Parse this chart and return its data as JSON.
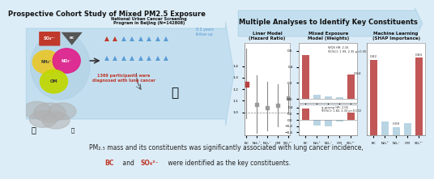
{
  "background_color": "#ddedf7",
  "bottom_bg": "#cce3f0",
  "title_left": "Prospective Cohort Study of Mixed PM2.5 Exposure",
  "title_right": "Multiple Analyses to Identify Key Constituents",
  "panel1_title": "Liner Model\n(Hazard Ratio)",
  "panel2_title": "Mixed Exposure\nModel (Weights)",
  "panel3_title": "Machine Learning\n(SHAP Importance)",
  "categories": [
    "BC",
    "NH₄⁺",
    "NO₃⁻",
    "OM",
    "SO₄²⁻"
  ],
  "panel1_values": [
    1.24,
    1.07,
    1.04,
    1.06,
    1.12
  ],
  "panel1_ci_low": [
    0.95,
    0.82,
    0.84,
    0.88,
    1.0
  ],
  "panel1_ci_high": [
    1.55,
    1.32,
    1.26,
    1.24,
    1.24
  ],
  "panel1_colors": [
    "#b94040",
    "#999999",
    "#999999",
    "#999999",
    "#999999"
  ],
  "panel2_wqs_values": [
    0.55,
    0.05,
    0.03,
    0.02,
    0.3
  ],
  "panel2_qgcomp_values": [
    0.38,
    -0.18,
    -0.2,
    -0.05,
    0.25
  ],
  "panel2_bar_colors_wqs": [
    "#b94040",
    "#b0cfe0",
    "#b0cfe0",
    "#b0cfe0",
    "#b94040"
  ],
  "panel2_bar_colors_qgcomp": [
    "#b94040",
    "#b0cfe0",
    "#b0cfe0",
    "#b0cfe0",
    "#b94040"
  ],
  "panel3_values": [
    0.82,
    0.15,
    0.09,
    0.13,
    0.84
  ],
  "panel3_colors": [
    "#b94040",
    "#b0cfe0",
    "#b0cfe0",
    "#b0cfe0",
    "#b94040"
  ],
  "wqs_label": "WQS HR: 2.16\n95%CI: 1.99, 2.35 p<0.001",
  "qgcomp_label": "q-gcomp HR: 2.06\n95%CI: 1.82, 2.33 p<0.002",
  "panel3_ann": {
    "0": "0.82",
    "2": "0.09",
    "4": "0.84"
  },
  "arrow_blue": "#6baed6",
  "screening_text": "National Urban Cancer Screening\nProgram in Beijing (N=142808)",
  "followup_text": "8.2 years\nfollow-up",
  "diagnosed_text": "1369 participants were\ndiagnosed with lung cancer",
  "bottom_line1": "PM₂.₅ mass and its constituents was significantly associated with lung cancer incidence,",
  "bottom_line2_a": "BC",
  "bottom_line2_b": " and ",
  "bottom_line2_c": "SO₄²⁻",
  "bottom_line2_d": " were identified as the key constituents.",
  "so4_color": "#c0392b",
  "bc_color": "#555555",
  "nh4_color": "#e8c830",
  "no3_color": "#e0208c",
  "om_color": "#c0d800"
}
